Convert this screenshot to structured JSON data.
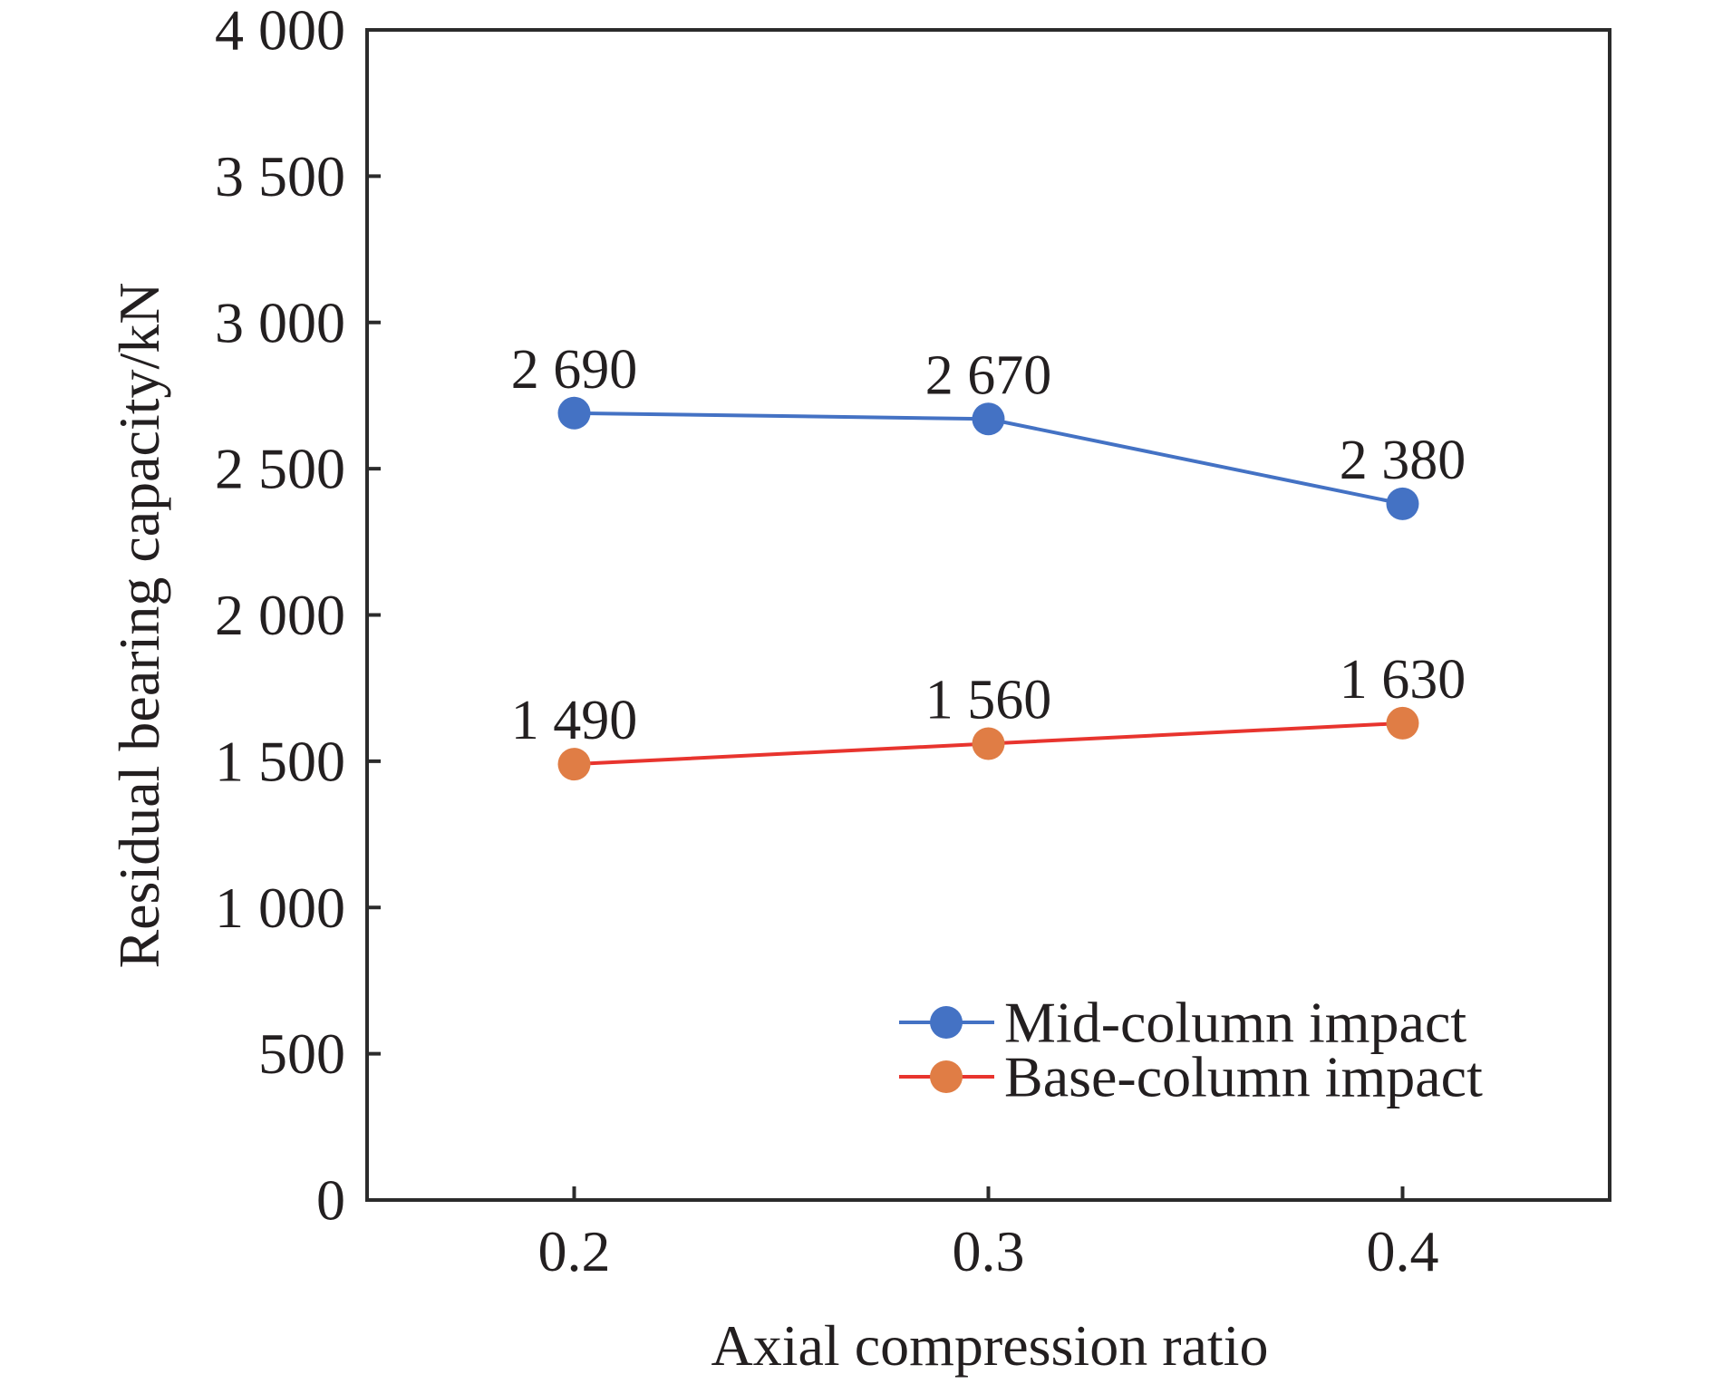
{
  "chart_data": {
    "type": "line",
    "title": "",
    "xlabel": "Axial compression ratio",
    "ylabel": "Residual bearing capacity/kN",
    "x": [
      0.2,
      0.3,
      0.4
    ],
    "x_tick_labels": [
      "0.2",
      "0.3",
      "0.4"
    ],
    "xlim": [
      0.15,
      0.45
    ],
    "ylim": [
      0,
      4000
    ],
    "y_ticks": [
      0,
      500,
      1000,
      1500,
      2000,
      2500,
      3000,
      3500,
      4000
    ],
    "y_tick_labels": [
      "0",
      "500",
      "1 000",
      "1 500",
      "2 000",
      "2 500",
      "3 000",
      "3 500",
      "4 000"
    ],
    "grid": false,
    "legend_position": "bottom-right",
    "series": [
      {
        "name": "Mid-column impact",
        "values": [
          2690,
          2670,
          2380
        ],
        "data_labels": [
          "2 690",
          "2 670",
          "2 380"
        ],
        "line_color": "#4472C4",
        "marker_color": "#4472C4"
      },
      {
        "name": "Base-column impact",
        "values": [
          1490,
          1560,
          1630
        ],
        "data_labels": [
          "1 490",
          "1 560",
          "1 630"
        ],
        "line_color": "#E8342E",
        "marker_color": "#E07D45"
      }
    ]
  }
}
